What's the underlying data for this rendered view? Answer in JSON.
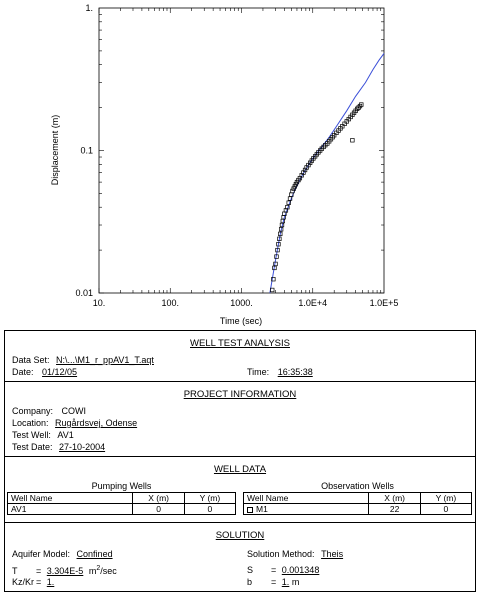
{
  "chart_data": {
    "type": "scatter",
    "xscale": "log",
    "yscale": "log",
    "xlim": [
      10,
      100000
    ],
    "ylim": [
      0.01,
      1
    ],
    "xlabel": "Time (sec)",
    "ylabel": "Displacement (m)",
    "xticks": [
      10,
      100,
      1000,
      10000,
      100000
    ],
    "xtick_labels": [
      "10.",
      "100.",
      "1000.",
      "1.0E+4",
      "1.0E+5"
    ],
    "yticks": [
      0.01,
      0.1,
      1
    ],
    "ytick_labels": [
      "0.01",
      "0.1",
      "1."
    ],
    "series": [
      {
        "kind": "observed",
        "marker": "square",
        "points": [
          [
            2700,
            0.0105
          ],
          [
            2800,
            0.0125
          ],
          [
            2900,
            0.015
          ],
          [
            3000,
            0.016
          ],
          [
            3100,
            0.018
          ],
          [
            3200,
            0.02
          ],
          [
            3300,
            0.022
          ],
          [
            3400,
            0.024
          ],
          [
            3500,
            0.026
          ],
          [
            3600,
            0.028
          ],
          [
            3700,
            0.03
          ],
          [
            3800,
            0.032
          ],
          [
            3900,
            0.034
          ],
          [
            4000,
            0.036
          ],
          [
            4200,
            0.038
          ],
          [
            4400,
            0.04
          ],
          [
            4600,
            0.043
          ],
          [
            4800,
            0.046
          ],
          [
            5000,
            0.049
          ],
          [
            5200,
            0.052
          ],
          [
            5400,
            0.054
          ],
          [
            5600,
            0.056
          ],
          [
            5800,
            0.058
          ],
          [
            6000,
            0.06
          ],
          [
            6300,
            0.062
          ],
          [
            6600,
            0.064
          ],
          [
            7000,
            0.067
          ],
          [
            7400,
            0.07
          ],
          [
            7800,
            0.073
          ],
          [
            8200,
            0.076
          ],
          [
            8700,
            0.079
          ],
          [
            9200,
            0.082
          ],
          [
            9700,
            0.085
          ],
          [
            10200,
            0.088
          ],
          [
            10800,
            0.091
          ],
          [
            11400,
            0.094
          ],
          [
            12000,
            0.097
          ],
          [
            12700,
            0.1
          ],
          [
            13400,
            0.103
          ],
          [
            14200,
            0.106
          ],
          [
            15000,
            0.109
          ],
          [
            16000,
            0.112
          ],
          [
            17000,
            0.116
          ],
          [
            18000,
            0.12
          ],
          [
            19000,
            0.124
          ],
          [
            20000,
            0.128
          ],
          [
            21500,
            0.133
          ],
          [
            23000,
            0.138
          ],
          [
            24500,
            0.143
          ],
          [
            26000,
            0.148
          ],
          [
            28000,
            0.154
          ],
          [
            30000,
            0.16
          ],
          [
            32000,
            0.166
          ],
          [
            34000,
            0.172
          ],
          [
            36000,
            0.178
          ],
          [
            38000,
            0.184
          ],
          [
            40000,
            0.19
          ],
          [
            42000,
            0.196
          ],
          [
            44000,
            0.2
          ],
          [
            46000,
            0.205
          ],
          [
            48000,
            0.21
          ],
          [
            36000,
            0.118
          ]
        ]
      },
      {
        "kind": "type-curve",
        "color": "#3b4fd8",
        "points": [
          [
            2500,
            0.008
          ],
          [
            3000,
            0.017
          ],
          [
            3500,
            0.026
          ],
          [
            4000,
            0.034
          ],
          [
            5000,
            0.046
          ],
          [
            6000,
            0.057
          ],
          [
            7500,
            0.07
          ],
          [
            10000,
            0.088
          ],
          [
            13000,
            0.104
          ],
          [
            17000,
            0.124
          ],
          [
            22000,
            0.15
          ],
          [
            30000,
            0.19
          ],
          [
            40000,
            0.24
          ],
          [
            55000,
            0.3
          ],
          [
            70000,
            0.37
          ],
          [
            85000,
            0.43
          ],
          [
            100000,
            0.48
          ]
        ]
      }
    ]
  },
  "report": {
    "title": "WELL TEST ANALYSIS",
    "data_set_label": "Data Set:",
    "data_set": "N:\\...\\M1_r_ppAV1_T.aqt",
    "date_label": "Date:",
    "date": "01/12/05",
    "time_label": "Time:",
    "time": "16:35:38",
    "project_title": "PROJECT INFORMATION",
    "company_label": "Company:",
    "company": "COWI",
    "location_label": "Location:",
    "location": "Rugårdsvej, Odense",
    "test_well_label": "Test Well:",
    "test_well": "AV1",
    "test_date_label": "Test Date:",
    "test_date": "27-10-2004",
    "well_data_title": "WELL DATA",
    "pumping_title": "Pumping Wells",
    "observation_title": "Observation Wells",
    "col_well_name": "Well Name",
    "col_x": "X (m)",
    "col_y": "Y (m)",
    "pumping_rows": [
      {
        "name": "AV1",
        "x": "0",
        "y": "0"
      }
    ],
    "observation_rows": [
      {
        "name": "M1",
        "x": "22",
        "y": "0"
      }
    ],
    "solution_title": "SOLUTION",
    "aquifer_model_label": "Aquifer Model:",
    "aquifer_model": "Confined",
    "solution_method_label": "Solution Method:",
    "solution_method": "Theis",
    "T_label": "T",
    "T_eq": "=",
    "T_value": "3.304E-5",
    "T_unit_prefix": "m",
    "T_unit_exp": "2",
    "T_unit_suffix": "/sec",
    "S_label": "S",
    "S_eq": "=",
    "S_value": "0.001348",
    "kz_label": "Kz/Kr",
    "kz_eq": "=",
    "kz_value": "1.",
    "b_label": "b",
    "b_eq": "=",
    "b_value": "1.",
    "b_unit": "m"
  }
}
